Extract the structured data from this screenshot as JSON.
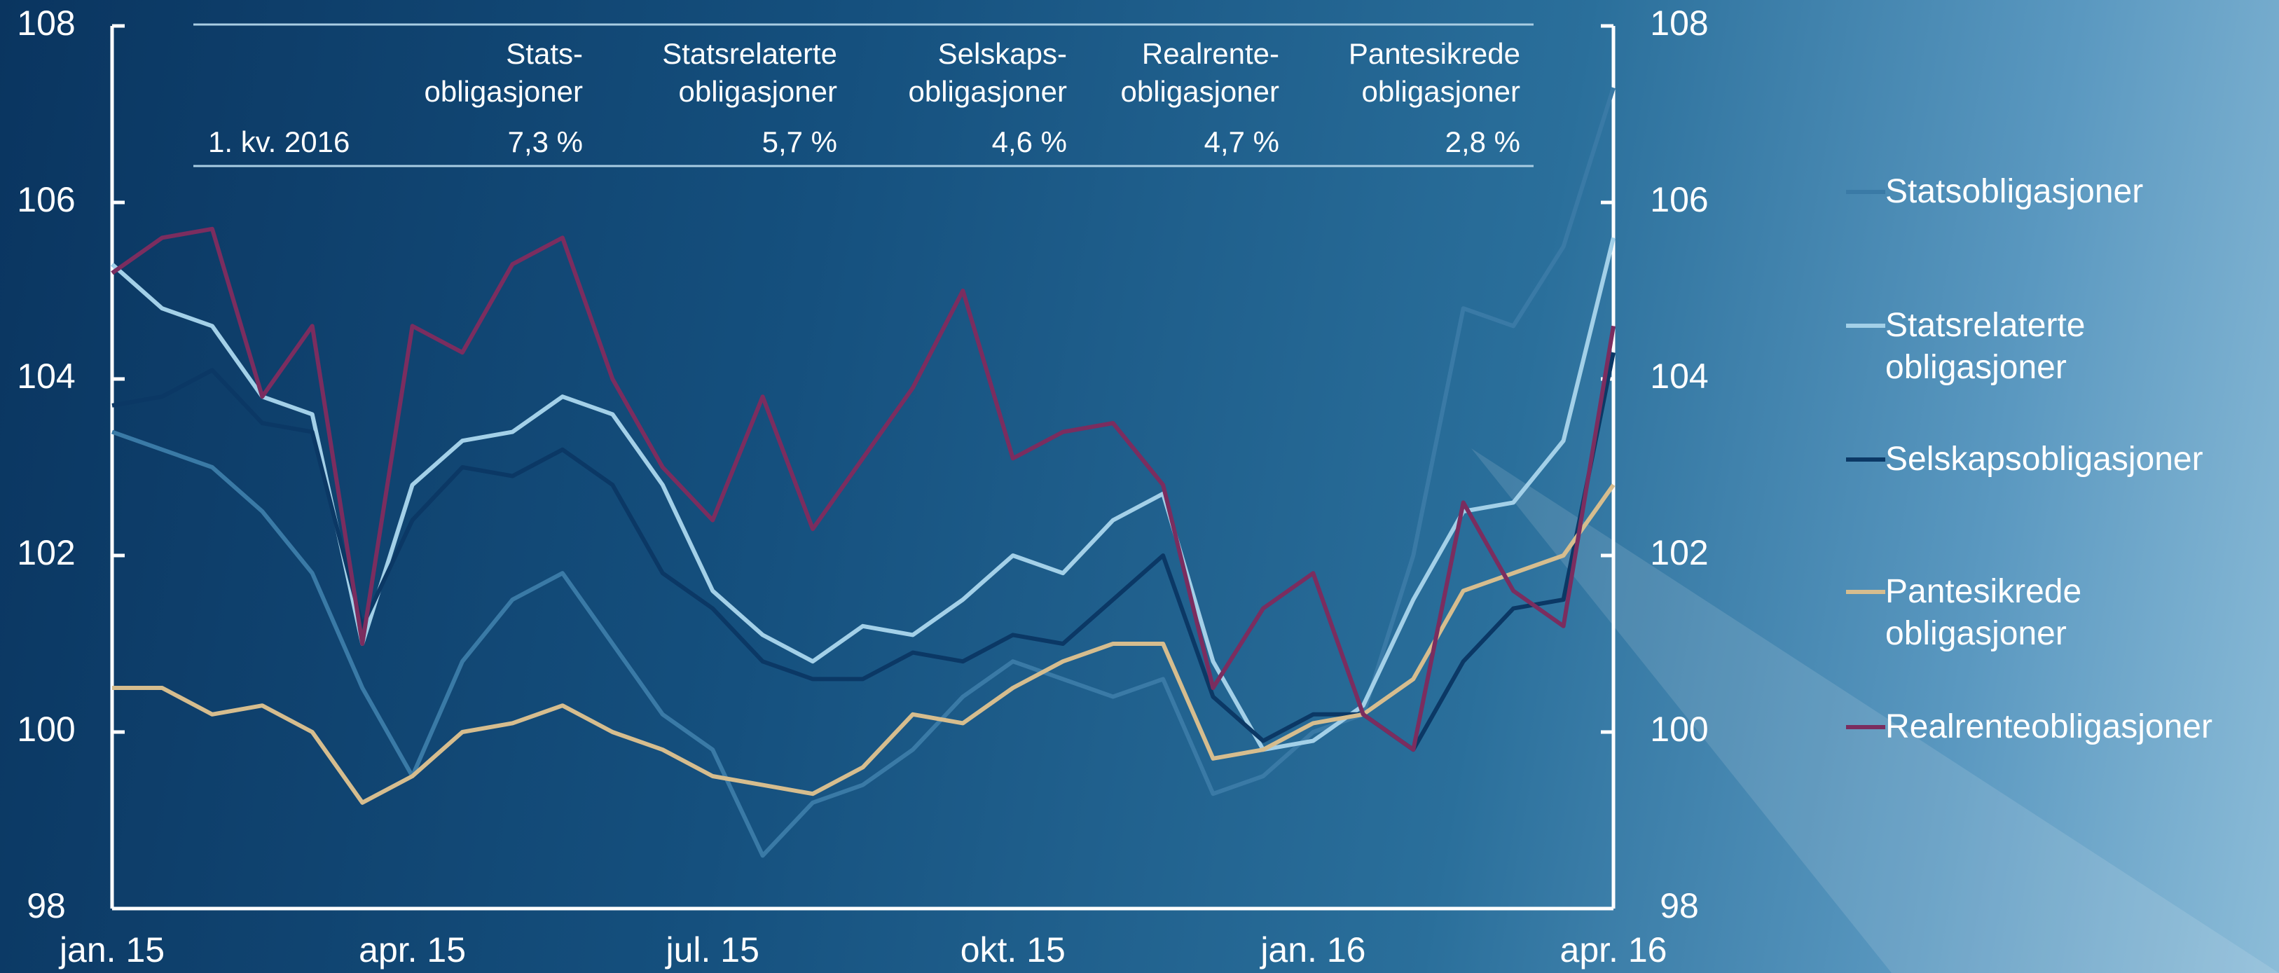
{
  "chart_data": {
    "type": "line",
    "categories": [
      "jan. 15",
      null,
      null,
      null,
      null,
      null,
      "apr. 15",
      null,
      null,
      null,
      null,
      null,
      "jul. 15",
      null,
      null,
      null,
      null,
      null,
      "okt. 15",
      null,
      null,
      null,
      null,
      null,
      "jan. 16",
      null,
      null,
      null,
      null,
      null,
      "apr. 16"
    ],
    "series": [
      {
        "name": "Statsobligasjoner",
        "color": "#3a7aa6",
        "values": [
          103.4,
          103.2,
          103.0,
          102.5,
          101.8,
          100.5,
          99.5,
          100.8,
          101.5,
          101.8,
          101.0,
          100.2,
          99.8,
          98.6,
          99.2,
          99.4,
          99.8,
          100.4,
          100.8,
          100.6,
          100.4,
          100.6,
          99.3,
          99.5,
          100.0,
          100.2,
          102.0,
          104.8,
          104.6,
          105.5,
          107.3
        ]
      },
      {
        "name": "Statsrelaterte obligasjoner",
        "color": "#a3d0e8",
        "values": [
          105.3,
          104.8,
          104.6,
          103.8,
          103.6,
          101.0,
          102.8,
          103.3,
          103.4,
          103.8,
          103.6,
          102.8,
          101.6,
          101.1,
          100.8,
          101.2,
          101.1,
          101.5,
          102.0,
          101.8,
          102.4,
          102.7,
          100.8,
          99.8,
          99.9,
          100.3,
          101.5,
          102.5,
          102.6,
          103.3,
          105.6
        ]
      },
      {
        "name": "Selskapsobligasjoner",
        "color": "#0b3865",
        "values": [
          103.7,
          103.8,
          104.1,
          103.5,
          103.4,
          101.2,
          102.4,
          103.0,
          102.9,
          103.2,
          102.8,
          101.8,
          101.4,
          100.8,
          100.6,
          100.6,
          100.9,
          100.8,
          101.1,
          101.0,
          101.5,
          102.0,
          100.4,
          99.9,
          100.2,
          100.2,
          99.8,
          100.8,
          101.4,
          101.5,
          104.3
        ]
      },
      {
        "name": "Pantesikrede obligasjoner",
        "color": "#d6bd8e",
        "values": [
          100.5,
          100.5,
          100.2,
          100.3,
          100.0,
          99.2,
          99.5,
          100.0,
          100.1,
          100.3,
          100.0,
          99.8,
          99.5,
          99.4,
          99.3,
          99.6,
          100.2,
          100.1,
          100.5,
          100.8,
          101.0,
          101.0,
          99.7,
          99.8,
          100.1,
          100.2,
          100.6,
          101.6,
          101.8,
          102.0,
          102.8
        ]
      },
      {
        "name": "Realrenteobligasjoner",
        "color": "#7b2d5f",
        "values": [
          105.2,
          105.6,
          105.7,
          103.8,
          104.6,
          101.0,
          104.6,
          104.3,
          105.3,
          105.6,
          104.0,
          103.0,
          102.4,
          103.8,
          102.3,
          103.1,
          103.9,
          105.0,
          103.1,
          103.4,
          103.5,
          102.8,
          100.5,
          101.4,
          101.8,
          100.2,
          99.8,
          102.6,
          101.6,
          101.2,
          104.6
        ]
      }
    ],
    "ylim": [
      98,
      108
    ],
    "yticks": [
      98,
      100,
      102,
      104,
      106,
      108
    ],
    "y2lim": [
      98,
      108
    ],
    "y2ticks": [
      98,
      100,
      102,
      104,
      106,
      108
    ],
    "table": {
      "columns": [
        "Stats-\nobligasjoner",
        "Statsrelaterte\nobligasjoner",
        "Selskaps-\nobligasjoner",
        "Realrente-\nobligasjoner",
        "Pantesikrede\nobligasjoner"
      ],
      "row_label": "1. kv. 2016",
      "values": [
        "7,3 %",
        "5,7 %",
        "4,6 %",
        "4,7 %",
        "2,8 %"
      ]
    }
  }
}
